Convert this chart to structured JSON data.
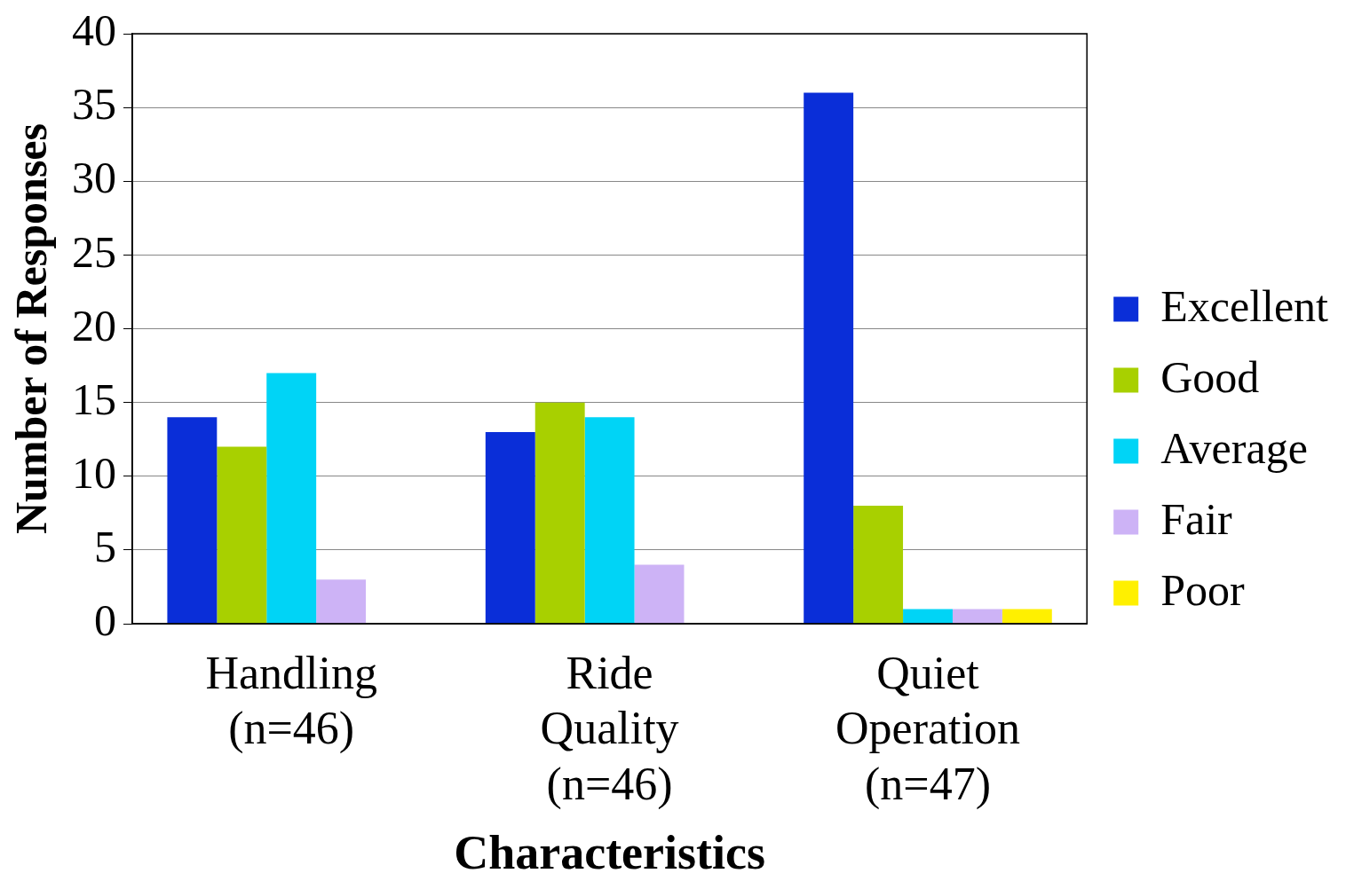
{
  "chart_data": {
    "type": "bar",
    "xlabel": "Characteristics",
    "ylabel": "Number of Responses",
    "categories": [
      "Handling (n=46)",
      "Ride Quality (n=46)",
      "Quiet Operation (n=47)"
    ],
    "series": [
      {
        "name": "Excellent",
        "color": "#0a2ed8",
        "values": [
          14,
          13,
          36
        ]
      },
      {
        "name": "Good",
        "color": "#a8d000",
        "values": [
          12,
          15,
          8
        ]
      },
      {
        "name": "Average",
        "color": "#00d4f6",
        "values": [
          17,
          14,
          1
        ]
      },
      {
        "name": "Fair",
        "color": "#cdb3f6",
        "values": [
          3,
          4,
          1
        ]
      },
      {
        "name": "Poor",
        "color": "#fff000",
        "values": [
          0,
          0,
          1
        ]
      }
    ],
    "ylim": [
      0,
      40
    ],
    "yticks": [
      0,
      5,
      10,
      15,
      20,
      25,
      30,
      35,
      40
    ],
    "grid": "y",
    "legend": "right"
  }
}
